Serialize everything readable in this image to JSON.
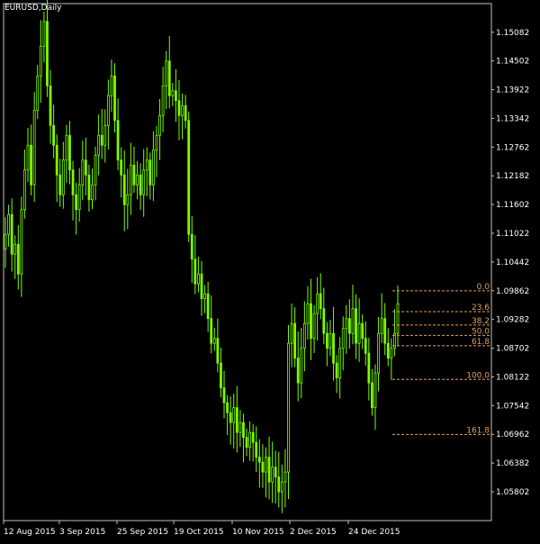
{
  "header": {
    "symbol": "EURUSD",
    "timeframe": "Daily"
  },
  "colors": {
    "background": "#000000",
    "candle": "#7CFC00",
    "frame": "#C0C0C0",
    "fibo": "#E0A060",
    "text": "#FFFFFF"
  },
  "chart_data": {
    "type": "candlestick",
    "title": "EURUSD,Daily",
    "ylim": [
      1.0522,
      1.1566
    ],
    "y_ticks": [
      "1.15082",
      "1.14502",
      "1.13922",
      "1.13342",
      "1.12762",
      "1.12182",
      "1.11602",
      "1.11022",
      "1.10442",
      "1.09862",
      "1.09282",
      "1.08702",
      "1.08122",
      "1.07542",
      "1.06962",
      "1.06382",
      "1.05802"
    ],
    "x_ticks": [
      "12 Aug 2015",
      "3 Sep 2015",
      "25 Sep 2015",
      "19 Oct 2015",
      "10 Nov 2015",
      "2 Dec 2015",
      "24 Dec 2015"
    ],
    "close": [
      1.11,
      1.114,
      1.106,
      1.108,
      1.102,
      1.115,
      1.123,
      1.128,
      1.12,
      1.135,
      1.142,
      1.148,
      1.153,
      1.14,
      1.132,
      1.128,
      1.122,
      1.118,
      1.125,
      1.13,
      1.123,
      1.118,
      1.115,
      1.12,
      1.125,
      1.122,
      1.117,
      1.12,
      1.126,
      1.13,
      1.128,
      1.132,
      1.138,
      1.142,
      1.133,
      1.125,
      1.122,
      1.116,
      1.118,
      1.124,
      1.12,
      1.122,
      1.118,
      1.123,
      1.125,
      1.12,
      1.127,
      1.13,
      1.134,
      1.14,
      1.145,
      1.138,
      1.139,
      1.137,
      1.134,
      1.136,
      1.133,
      1.11,
      1.105,
      1.1,
      1.102,
      1.097,
      1.098,
      1.093,
      1.088,
      1.089,
      1.084,
      1.079,
      1.076,
      1.074,
      1.072,
      1.075,
      1.07,
      1.072,
      1.069,
      1.067,
      1.07,
      1.068,
      1.065,
      1.064,
      1.062,
      1.065,
      1.06,
      1.063,
      1.061,
      1.058,
      1.06,
      1.062,
      1.088,
      1.092,
      1.085,
      1.08,
      1.087,
      1.092,
      1.096,
      1.089,
      1.094,
      1.098,
      1.095,
      1.09,
      1.087,
      1.09,
      1.084,
      1.081,
      1.087,
      1.091,
      1.093,
      1.09,
      1.095,
      1.088,
      1.092,
      1.089,
      1.086,
      1.08,
      1.075,
      1.082,
      1.09,
      1.093,
      1.088,
      1.085,
      1.087,
      1.09,
      1.096
    ]
  },
  "fibonacci": {
    "levels": [
      {
        "label": "0.0",
        "price": 1.0986
      },
      {
        "label": "23.6",
        "price": 1.0944
      },
      {
        "label": "38.2",
        "price": 1.0917
      },
      {
        "label": "50.0",
        "price": 1.0896
      },
      {
        "label": "61.8",
        "price": 1.0875
      },
      {
        "label": "100.0",
        "price": 1.0807
      },
      {
        "label": "161.8",
        "price": 1.0696
      }
    ]
  }
}
